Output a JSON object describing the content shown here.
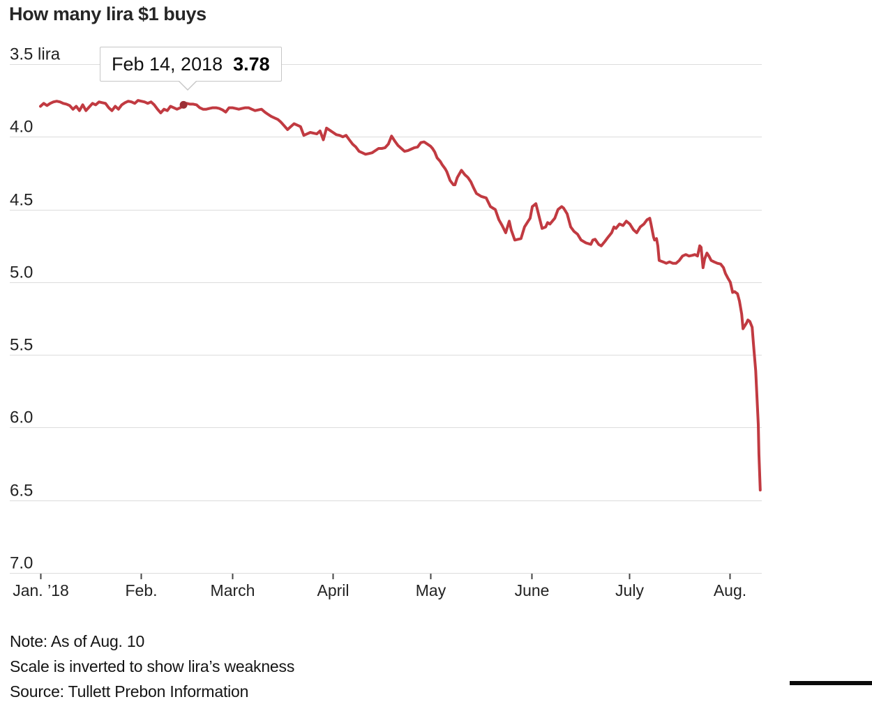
{
  "chart_data": {
    "type": "line",
    "title": "How many lira $1 buys",
    "unit_label": "lira",
    "y_axis": {
      "inverted": true,
      "range": [
        3.5,
        7.0
      ],
      "ticks": [
        {
          "value": 3.5,
          "label": "3.5 lira"
        },
        {
          "value": 4.0,
          "label": "4.0"
        },
        {
          "value": 4.5,
          "label": "4.5"
        },
        {
          "value": 5.0,
          "label": "5.0"
        },
        {
          "value": 5.5,
          "label": "5.5"
        },
        {
          "value": 6.0,
          "label": "6.0"
        },
        {
          "value": 6.5,
          "label": "6.5"
        },
        {
          "value": 7.0,
          "label": "7.0"
        }
      ]
    },
    "x_axis": {
      "ticks": [
        {
          "day": 0,
          "label": "Jan. ’18"
        },
        {
          "day": 31,
          "label": "Feb."
        },
        {
          "day": 59,
          "label": "March"
        },
        {
          "day": 90,
          "label": "April"
        },
        {
          "day": 120,
          "label": "May"
        },
        {
          "day": 151,
          "label": "June"
        },
        {
          "day": 181,
          "label": "July"
        },
        {
          "day": 212,
          "label": "Aug."
        }
      ]
    },
    "annotation": {
      "date": "Feb 14, 2018",
      "value": 3.78,
      "value_label": "3.78",
      "day": 44
    },
    "colors": {
      "line": "#c13a41",
      "marker": "#9c2f36",
      "grid": "#dcdcdc",
      "axis_tick": "#444444",
      "text": "#222222"
    },
    "series": [
      {
        "name": "lira_per_dollar",
        "points": [
          [
            0,
            3.79
          ],
          [
            1,
            3.77
          ],
          [
            2,
            3.785
          ],
          [
            3,
            3.77
          ],
          [
            4,
            3.76
          ],
          [
            5,
            3.755
          ],
          [
            6,
            3.76
          ],
          [
            7,
            3.77
          ],
          [
            8,
            3.775
          ],
          [
            9,
            3.785
          ],
          [
            10,
            3.81
          ],
          [
            11,
            3.79
          ],
          [
            12,
            3.82
          ],
          [
            13,
            3.78
          ],
          [
            14,
            3.82
          ],
          [
            15,
            3.795
          ],
          [
            16,
            3.77
          ],
          [
            17,
            3.78
          ],
          [
            18,
            3.76
          ],
          [
            19,
            3.765
          ],
          [
            20,
            3.77
          ],
          [
            21,
            3.8
          ],
          [
            22,
            3.82
          ],
          [
            23,
            3.79
          ],
          [
            24,
            3.81
          ],
          [
            25,
            3.78
          ],
          [
            26,
            3.765
          ],
          [
            27,
            3.755
          ],
          [
            28,
            3.76
          ],
          [
            29,
            3.77
          ],
          [
            30,
            3.75
          ],
          [
            31,
            3.755
          ],
          [
            32,
            3.76
          ],
          [
            33,
            3.77
          ],
          [
            34,
            3.76
          ],
          [
            35,
            3.78
          ],
          [
            36,
            3.81
          ],
          [
            37,
            3.835
          ],
          [
            38,
            3.81
          ],
          [
            39,
            3.82
          ],
          [
            40,
            3.79
          ],
          [
            41,
            3.8
          ],
          [
            42,
            3.81
          ],
          [
            43,
            3.8
          ],
          [
            44,
            3.78
          ],
          [
            45,
            3.77
          ],
          [
            46,
            3.775
          ],
          [
            47,
            3.775
          ],
          [
            48,
            3.78
          ],
          [
            49,
            3.8
          ],
          [
            50,
            3.81
          ],
          [
            51,
            3.81
          ],
          [
            52,
            3.805
          ],
          [
            53,
            3.8
          ],
          [
            54,
            3.8
          ],
          [
            55,
            3.805
          ],
          [
            56,
            3.815
          ],
          [
            57,
            3.83
          ],
          [
            58,
            3.8
          ],
          [
            59,
            3.8
          ],
          [
            60,
            3.805
          ],
          [
            61,
            3.81
          ],
          [
            62,
            3.805
          ],
          [
            63,
            3.8
          ],
          [
            64,
            3.8
          ],
          [
            65,
            3.81
          ],
          [
            66,
            3.82
          ],
          [
            67,
            3.815
          ],
          [
            68,
            3.81
          ],
          [
            69,
            3.83
          ],
          [
            70,
            3.845
          ],
          [
            71,
            3.86
          ],
          [
            72,
            3.87
          ],
          [
            73,
            3.88
          ],
          [
            74,
            3.9
          ],
          [
            75,
            3.925
          ],
          [
            76,
            3.95
          ],
          [
            77,
            3.93
          ],
          [
            78,
            3.91
          ],
          [
            79,
            3.92
          ],
          [
            80,
            3.93
          ],
          [
            81,
            3.99
          ],
          [
            82,
            3.98
          ],
          [
            83,
            3.97
          ],
          [
            84,
            3.975
          ],
          [
            85,
            3.98
          ],
          [
            86,
            3.96
          ],
          [
            87,
            4.02
          ],
          [
            88,
            3.94
          ],
          [
            89,
            3.955
          ],
          [
            90,
            3.97
          ],
          [
            91,
            3.985
          ],
          [
            92,
            3.99
          ],
          [
            93,
            4.0
          ],
          [
            94,
            3.99
          ],
          [
            95,
            4.02
          ],
          [
            96,
            4.05
          ],
          [
            97,
            4.07
          ],
          [
            98,
            4.1
          ],
          [
            99,
            4.11
          ],
          [
            100,
            4.12
          ],
          [
            101,
            4.115
          ],
          [
            102,
            4.11
          ],
          [
            103,
            4.095
          ],
          [
            104,
            4.08
          ],
          [
            105,
            4.08
          ],
          [
            106,
            4.075
          ],
          [
            107,
            4.05
          ],
          [
            108,
            3.995
          ],
          [
            109,
            4.03
          ],
          [
            110,
            4.06
          ],
          [
            111,
            4.08
          ],
          [
            112,
            4.1
          ],
          [
            113,
            4.095
          ],
          [
            114,
            4.085
          ],
          [
            115,
            4.075
          ],
          [
            116,
            4.07
          ],
          [
            117,
            4.04
          ],
          [
            118,
            4.035
          ],
          [
            119,
            4.05
          ],
          [
            120,
            4.065
          ],
          [
            120.6,
            4.08
          ],
          [
            121.3,
            4.105
          ],
          [
            122,
            4.145
          ],
          [
            123,
            4.17
          ],
          [
            123.5,
            4.19
          ],
          [
            124.5,
            4.22
          ],
          [
            125,
            4.24
          ],
          [
            126,
            4.3
          ],
          [
            127,
            4.33
          ],
          [
            127.5,
            4.33
          ],
          [
            128.2,
            4.28
          ],
          [
            129.5,
            4.23
          ],
          [
            130.5,
            4.26
          ],
          [
            131.5,
            4.28
          ],
          [
            132.4,
            4.31
          ],
          [
            133.2,
            4.35
          ],
          [
            134.1,
            4.39
          ],
          [
            135.6,
            4.41
          ],
          [
            137.1,
            4.42
          ],
          [
            138.4,
            4.48
          ],
          [
            139.9,
            4.5
          ],
          [
            141,
            4.57
          ],
          [
            142,
            4.61
          ],
          [
            143.1,
            4.66
          ],
          [
            144.2,
            4.58
          ],
          [
            144.8,
            4.64
          ],
          [
            145.9,
            4.71
          ],
          [
            147.8,
            4.7
          ],
          [
            148.9,
            4.62
          ],
          [
            150,
            4.58
          ],
          [
            150.6,
            4.56
          ],
          [
            151.3,
            4.48
          ],
          [
            152.4,
            4.46
          ],
          [
            153.4,
            4.55
          ],
          [
            154.3,
            4.63
          ],
          [
            155.4,
            4.62
          ],
          [
            156,
            4.59
          ],
          [
            156.7,
            4.6
          ],
          [
            158.2,
            4.56
          ],
          [
            159.2,
            4.5
          ],
          [
            160.3,
            4.48
          ],
          [
            160.9,
            4.49
          ],
          [
            162,
            4.53
          ],
          [
            163.1,
            4.62
          ],
          [
            164.1,
            4.65
          ],
          [
            165.2,
            4.67
          ],
          [
            166.3,
            4.71
          ],
          [
            167.8,
            4.73
          ],
          [
            169.3,
            4.74
          ],
          [
            169.9,
            4.71
          ],
          [
            170.6,
            4.705
          ],
          [
            171.7,
            4.74
          ],
          [
            172.5,
            4.75
          ],
          [
            173.6,
            4.72
          ],
          [
            174.6,
            4.69
          ],
          [
            175.7,
            4.66
          ],
          [
            176.4,
            4.62
          ],
          [
            177,
            4.63
          ],
          [
            178.1,
            4.6
          ],
          [
            179.2,
            4.61
          ],
          [
            180.2,
            4.58
          ],
          [
            181.3,
            4.6
          ],
          [
            182.4,
            4.64
          ],
          [
            183.4,
            4.66
          ],
          [
            184.5,
            4.62
          ],
          [
            185.6,
            4.6
          ],
          [
            186.6,
            4.57
          ],
          [
            187.4,
            4.56
          ],
          [
            187.8,
            4.6
          ],
          [
            188.6,
            4.69
          ],
          [
            188.9,
            4.71
          ],
          [
            189.5,
            4.7
          ],
          [
            189.9,
            4.75
          ],
          [
            190.3,
            4.85
          ],
          [
            191.5,
            4.86
          ],
          [
            192.5,
            4.87
          ],
          [
            193.5,
            4.86
          ],
          [
            194.5,
            4.87
          ],
          [
            195.5,
            4.87
          ],
          [
            196.5,
            4.85
          ],
          [
            197.5,
            4.82
          ],
          [
            198.5,
            4.81
          ],
          [
            199.5,
            4.82
          ],
          [
            200.5,
            4.815
          ],
          [
            201.3,
            4.81
          ],
          [
            202.1,
            4.82
          ],
          [
            202.8,
            4.75
          ],
          [
            203.2,
            4.76
          ],
          [
            203.8,
            4.9
          ],
          [
            204.3,
            4.84
          ],
          [
            205,
            4.8
          ],
          [
            205.6,
            4.82
          ],
          [
            206.3,
            4.85
          ],
          [
            207.2,
            4.86
          ],
          [
            208.2,
            4.87
          ],
          [
            209.2,
            4.875
          ],
          [
            210.1,
            4.9
          ],
          [
            210.7,
            4.94
          ],
          [
            211.4,
            4.97
          ],
          [
            212.2,
            5.0
          ],
          [
            212.9,
            5.07
          ],
          [
            213.5,
            5.065
          ],
          [
            214.4,
            5.08
          ],
          [
            215,
            5.13
          ],
          [
            215.7,
            5.22
          ],
          [
            216.1,
            5.32
          ],
          [
            217.2,
            5.28
          ],
          [
            217.6,
            5.26
          ],
          [
            218.2,
            5.27
          ],
          [
            218.9,
            5.31
          ],
          [
            219.3,
            5.42
          ],
          [
            220,
            5.61
          ],
          [
            220.4,
            5.79
          ],
          [
            220.8,
            5.98
          ],
          [
            221,
            6.18
          ],
          [
            221.4,
            6.43
          ]
        ]
      }
    ]
  },
  "notes": {
    "line1": "Note: As of Aug. 10",
    "line2": "Scale is inverted to show lira’s weakness",
    "source": "Source: Tullett Prebon Information"
  }
}
